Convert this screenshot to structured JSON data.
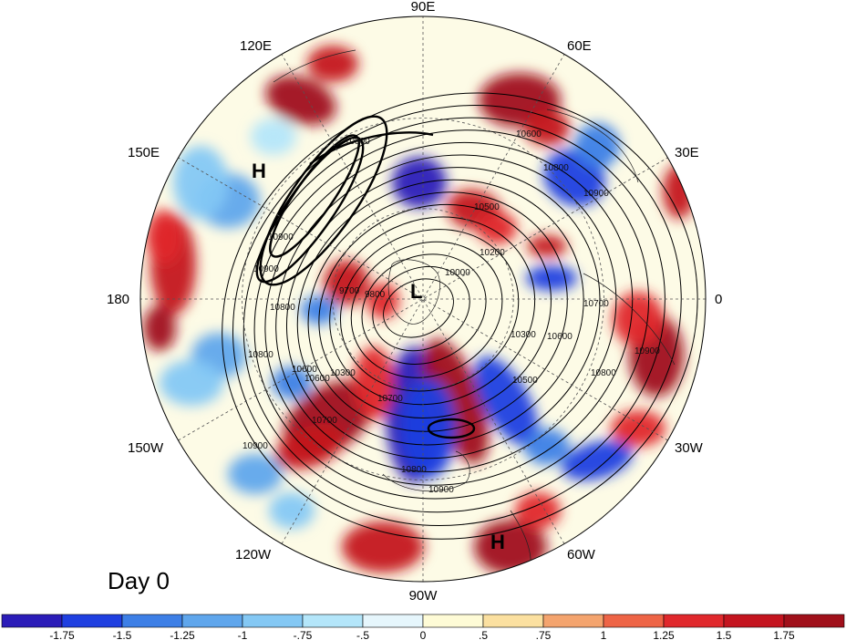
{
  "map": {
    "projection": "north polar stereographic",
    "longitude_labels": [
      "90E",
      "60E",
      "30E",
      "0",
      "30W",
      "60W",
      "90W",
      "120W",
      "150W",
      "180",
      "150E",
      "120E"
    ],
    "day_label": "Day 0",
    "pressure_markers": [
      "H",
      "H",
      "L"
    ],
    "contour_labels": [
      "10800",
      "10900",
      "10600",
      "10800",
      "10900",
      "10500",
      "10700",
      "10600",
      "10800",
      "10900",
      "10200",
      "10000",
      "9700",
      "9800",
      "10300",
      "10600",
      "10800",
      "10700",
      "10900",
      "10600",
      "10300",
      "10500",
      "10700",
      "10800",
      "10900",
      "10800",
      "10900"
    ]
  },
  "colorbar": {
    "tick_labels": [
      "-1.75",
      "-1.5",
      "-1.25",
      "-1",
      "-.75",
      "-.5",
      "0",
      ".5",
      ".75",
      "1",
      "1.25",
      "1.5",
      "1.75"
    ],
    "colors": [
      "#2b1cb8",
      "#1f3fe0",
      "#3d7fe6",
      "#5fa6ec",
      "#84c8f4",
      "#b4e6fa",
      "#e6f6fc",
      "#fefbd6",
      "#fbe0a0",
      "#f4a46e",
      "#ee6446",
      "#e0282c",
      "#c4141f",
      "#a0101a"
    ]
  },
  "anomaly_fields": [
    {
      "name": "blob",
      "color": "#2b1cb8"
    }
  ]
}
